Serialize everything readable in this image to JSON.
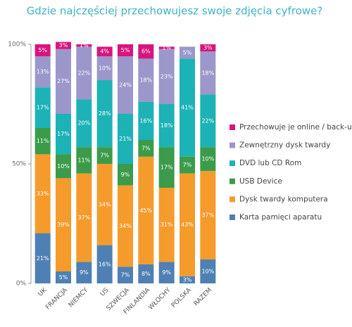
{
  "chart_data": {
    "type": "bar",
    "stacked": true,
    "title": "Gdzie najczęściej przechowujesz swoje zdjęcia cyfrowe?",
    "categories": [
      "UK",
      "FRANCJA",
      "NIEMCY",
      "US",
      "SZWECJA",
      "FINLANDIA",
      "WŁOCHY",
      "POLSKA",
      "RAZEM"
    ],
    "ylim": [
      0,
      100
    ],
    "yticks": [
      {
        "value": 0,
        "label": "0%"
      },
      {
        "value": 50,
        "label": "50%"
      },
      {
        "value": 100,
        "label": "100%"
      }
    ],
    "series": [
      {
        "name": "Karta pamięci aparatu",
        "color": "#4f80b4",
        "values": [
          21,
          5,
          9,
          16,
          7,
          8,
          9,
          3,
          10
        ],
        "value_labels": [
          "21%",
          "5%",
          "9%",
          "16%",
          "7%",
          "8%",
          "9%",
          "3%",
          "10%"
        ]
      },
      {
        "name": "Dysk twardy komputera",
        "color": "#f59b2b",
        "values": [
          33,
          39,
          37,
          34,
          34,
          45,
          31,
          43,
          37
        ],
        "value_labels": [
          "33%",
          "39%",
          "37%",
          "34%",
          "34%",
          "45%",
          "31%",
          "43%",
          "37%"
        ]
      },
      {
        "name": "USB Device",
        "color": "#3b9b4a",
        "values": [
          11,
          10,
          11,
          7,
          9,
          7,
          17,
          7,
          10
        ],
        "value_labels": [
          "11%",
          "10%",
          "11%",
          "7%",
          "9%",
          "7%",
          "17%",
          "7%",
          "10%"
        ]
      },
      {
        "name": "DVD lub CD Rom",
        "color": "#1cb2b6",
        "values": [
          17,
          17,
          20,
          28,
          21,
          16,
          18,
          41,
          22
        ],
        "value_labels": [
          "17%",
          "17%",
          "20%",
          "28%",
          "21%",
          "16%",
          "18%",
          "41%",
          "22%"
        ]
      },
      {
        "name": "Zewnętrzny dysk twardy",
        "color": "#9b97cb",
        "values": [
          13,
          27,
          22,
          10,
          24,
          18,
          23,
          5,
          18
        ],
        "value_labels": [
          "13%",
          "27%",
          "22%",
          "10%",
          "24%",
          "18%",
          "23%",
          "5%",
          "18%"
        ]
      },
      {
        "name": "Przechowuje je online / back-up",
        "color": "#d8157d",
        "values": [
          5,
          3,
          1,
          4,
          5,
          6,
          1,
          null,
          3
        ],
        "value_labels": [
          "5%",
          "3%",
          "1%",
          "4%",
          "5%",
          "6%",
          "1%",
          null,
          "3%"
        ]
      }
    ]
  }
}
